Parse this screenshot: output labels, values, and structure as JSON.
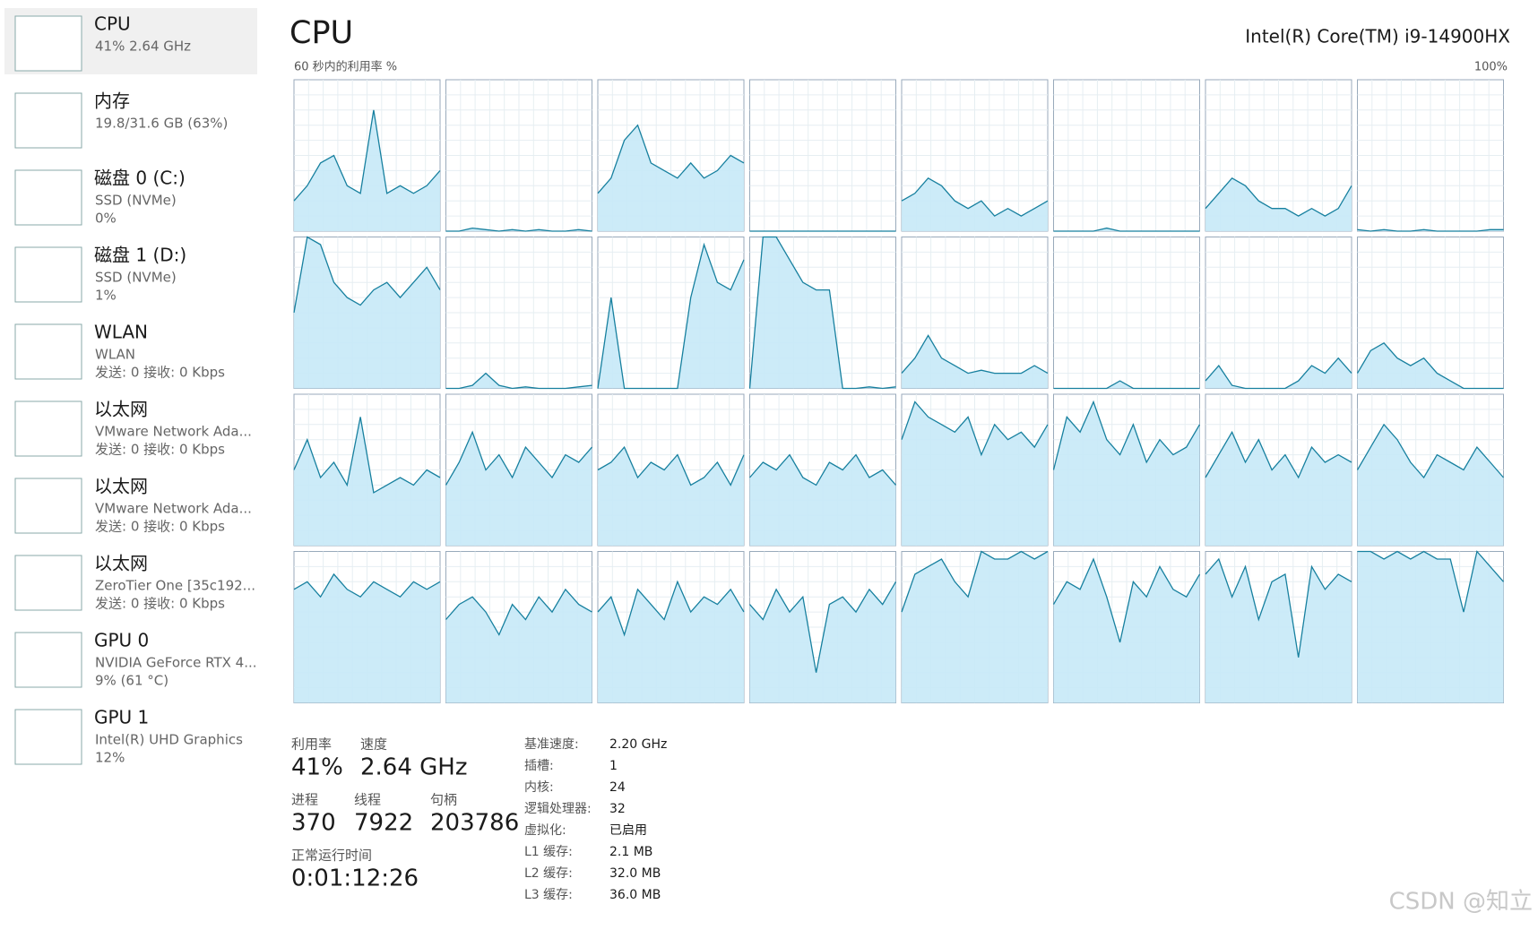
{
  "sidebar": [
    {
      "title": "CPU",
      "lines": [
        "41% 2.64 GHz"
      ]
    },
    {
      "title": "内存",
      "lines": [
        "19.8/31.6 GB (63%)"
      ]
    },
    {
      "title": "磁盘 0 (C:)",
      "lines": [
        "SSD (NVMe)",
        "0%"
      ]
    },
    {
      "title": "磁盘 1 (D:)",
      "lines": [
        "SSD (NVMe)",
        "1%"
      ]
    },
    {
      "title": "WLAN",
      "lines": [
        "WLAN",
        "发送: 0 接收: 0 Kbps"
      ]
    },
    {
      "title": "以太网",
      "lines": [
        "VMware Network Ada...",
        "发送: 0 接收: 0 Kbps"
      ]
    },
    {
      "title": "以太网",
      "lines": [
        "VMware Network Ada...",
        "发送: 0 接收: 0 Kbps"
      ]
    },
    {
      "title": "以太网",
      "lines": [
        "ZeroTier One [35c192...",
        "发送: 0 接收: 0 Kbps"
      ]
    },
    {
      "title": "GPU 0",
      "lines": [
        "NVIDIA GeForce RTX 4...",
        "9% (61 °C)"
      ]
    },
    {
      "title": "GPU 1",
      "lines": [
        "Intel(R) UHD Graphics",
        "12%"
      ]
    }
  ],
  "header": {
    "title": "CPU",
    "processor": "Intel(R) Core(TM) i9-14900HX"
  },
  "cpu_graphs": {
    "label": "60 秒内的利用率 %",
    "max_label": "100%",
    "ylim": [
      0,
      100
    ],
    "cores": [
      [
        20,
        30,
        45,
        50,
        30,
        25,
        80,
        25,
        30,
        25,
        30,
        40
      ],
      [
        0,
        0,
        2,
        1,
        0,
        1,
        0,
        1,
        0,
        0,
        1,
        0
      ],
      [
        25,
        35,
        60,
        70,
        45,
        40,
        35,
        45,
        35,
        40,
        50,
        45
      ],
      [
        0,
        0,
        0,
        0,
        0,
        0,
        0,
        0,
        0,
        0,
        0,
        0
      ],
      [
        20,
        25,
        35,
        30,
        20,
        15,
        20,
        10,
        15,
        10,
        15,
        20
      ],
      [
        0,
        0,
        0,
        0,
        2,
        0,
        0,
        0,
        0,
        0,
        0,
        0
      ],
      [
        15,
        25,
        35,
        30,
        20,
        15,
        15,
        10,
        15,
        10,
        15,
        30
      ],
      [
        1,
        0,
        1,
        0,
        0,
        1,
        0,
        0,
        0,
        0,
        1,
        1
      ],
      [
        50,
        100,
        95,
        70,
        60,
        55,
        65,
        70,
        60,
        70,
        80,
        65
      ],
      [
        0,
        0,
        2,
        10,
        2,
        0,
        1,
        0,
        0,
        0,
        1,
        2
      ],
      [
        0,
        60,
        0,
        0,
        0,
        0,
        0,
        60,
        95,
        70,
        65,
        85
      ],
      [
        0,
        100,
        100,
        85,
        70,
        65,
        65,
        0,
        0,
        1,
        0,
        1
      ],
      [
        10,
        20,
        35,
        20,
        15,
        10,
        12,
        10,
        10,
        10,
        15,
        10
      ],
      [
        0,
        0,
        0,
        0,
        0,
        5,
        0,
        0,
        0,
        0,
        0,
        0
      ],
      [
        5,
        15,
        2,
        0,
        0,
        0,
        0,
        5,
        15,
        10,
        20,
        10
      ],
      [
        10,
        25,
        30,
        20,
        15,
        20,
        10,
        5,
        0,
        0,
        0,
        0
      ],
      [
        50,
        70,
        45,
        55,
        40,
        85,
        35,
        40,
        45,
        40,
        50,
        45
      ],
      [
        40,
        55,
        75,
        50,
        60,
        45,
        65,
        55,
        45,
        60,
        55,
        65
      ],
      [
        50,
        55,
        65,
        45,
        55,
        50,
        60,
        40,
        45,
        55,
        40,
        60
      ],
      [
        45,
        55,
        50,
        60,
        45,
        40,
        55,
        50,
        60,
        45,
        50,
        40
      ],
      [
        70,
        95,
        85,
        80,
        75,
        85,
        60,
        80,
        70,
        75,
        65,
        80
      ],
      [
        50,
        85,
        75,
        95,
        70,
        60,
        80,
        55,
        70,
        60,
        65,
        80
      ],
      [
        45,
        60,
        75,
        55,
        70,
        50,
        60,
        45,
        65,
        55,
        60,
        55
      ],
      [
        50,
        65,
        80,
        70,
        55,
        45,
        60,
        55,
        50,
        65,
        55,
        45
      ],
      [
        75,
        80,
        70,
        85,
        75,
        70,
        80,
        75,
        70,
        80,
        75,
        80
      ],
      [
        55,
        65,
        70,
        60,
        45,
        65,
        55,
        70,
        60,
        75,
        65,
        60
      ],
      [
        60,
        70,
        45,
        75,
        65,
        55,
        80,
        60,
        70,
        65,
        75,
        60
      ],
      [
        65,
        55,
        75,
        60,
        70,
        20,
        65,
        70,
        60,
        75,
        65,
        80
      ],
      [
        60,
        85,
        90,
        95,
        80,
        70,
        100,
        95,
        95,
        100,
        95,
        100
      ],
      [
        65,
        80,
        75,
        95,
        70,
        40,
        80,
        70,
        90,
        75,
        70,
        85
      ],
      [
        85,
        95,
        70,
        90,
        55,
        80,
        85,
        30,
        90,
        75,
        85,
        80
      ],
      [
        100,
        100,
        95,
        100,
        95,
        100,
        95,
        95,
        60,
        100,
        90,
        80
      ]
    ]
  },
  "stats": [
    [
      {
        "label": "利用率",
        "value": "41%"
      },
      {
        "label": "速度",
        "value": "2.64 GHz"
      }
    ],
    [
      {
        "label": "进程",
        "value": "370"
      },
      {
        "label": "线程",
        "value": "7922"
      },
      {
        "label": "句柄",
        "value": "203786"
      }
    ],
    [
      {
        "label": "正常运行时间",
        "value": "0:01:12:26"
      }
    ]
  ],
  "details": [
    [
      "基准速度:",
      "2.20 GHz"
    ],
    [
      "插槽:",
      "1"
    ],
    [
      "内核:",
      "24"
    ],
    [
      "逻辑处理器:",
      "32"
    ],
    [
      "虚拟化:",
      "已启用"
    ],
    [
      "L1 缓存:",
      "2.1 MB"
    ],
    [
      "L2 缓存:",
      "32.0 MB"
    ],
    [
      "L3 缓存:",
      "36.0 MB"
    ]
  ],
  "watermark": "CSDN @知立"
}
